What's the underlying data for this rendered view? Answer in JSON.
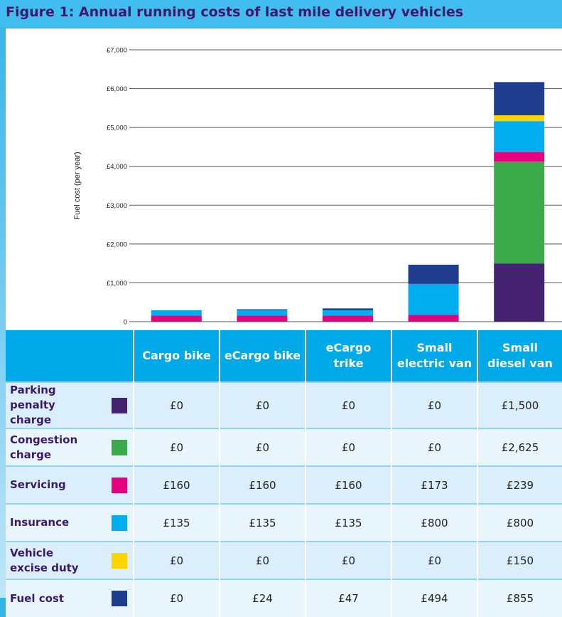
{
  "figure": {
    "title": "Figure 1: Annual running costs of last mile delivery vehicles"
  },
  "chart_data": {
    "type": "bar",
    "stacked": true,
    "categories": [
      "Cargo bike",
      "eCargo bike",
      "eCargo trike",
      "Small electric van",
      "Small diesel van"
    ],
    "category_header_lines": [
      [
        "Cargo bike"
      ],
      [
        "eCargo bike"
      ],
      [
        "eCargo",
        "trike"
      ],
      [
        "Small",
        "electric van"
      ],
      [
        "Small",
        "diesel van"
      ]
    ],
    "ylabel": "Fuel cost (per year)",
    "ylim": [
      0,
      7000
    ],
    "yticks": [
      0,
      1000,
      2000,
      3000,
      4000,
      5000,
      6000,
      7000
    ],
    "ytick_labels": [
      "0",
      "£1,000",
      "£2,000",
      "£3,000",
      "£4,000",
      "£5,000",
      "£6,000",
      "£7,000"
    ],
    "grid": true,
    "series": [
      {
        "name": "Parking penalty charge",
        "label_lines": [
          "Parking penalty",
          "charge"
        ],
        "color": "#44226f",
        "values": [
          0,
          0,
          0,
          0,
          1500
        ],
        "value_labels": [
          "£0",
          "£0",
          "£0",
          "£0",
          "£1,500"
        ]
      },
      {
        "name": "Congestion charge",
        "label_lines": [
          "Congestion",
          "charge"
        ],
        "color": "#3aaa4a",
        "values": [
          0,
          0,
          0,
          0,
          2625
        ],
        "value_labels": [
          "£0",
          "£0",
          "£0",
          "£0",
          "£2,625"
        ]
      },
      {
        "name": "Servicing",
        "label_lines": [
          "Servicing"
        ],
        "color": "#e5007e",
        "values": [
          160,
          160,
          160,
          173,
          239
        ],
        "value_labels": [
          "£160",
          "£160",
          "£160",
          "£173",
          "£239"
        ]
      },
      {
        "name": "Insurance",
        "label_lines": [
          "Insurance"
        ],
        "color": "#00aeef",
        "values": [
          135,
          135,
          135,
          800,
          800
        ],
        "value_labels": [
          "£135",
          "£135",
          "£135",
          "£800",
          "£800"
        ]
      },
      {
        "name": "Vehicle excise duty",
        "label_lines": [
          "Vehicle",
          "excise duty"
        ],
        "color": "#ffd400",
        "values": [
          0,
          0,
          0,
          0,
          150
        ],
        "value_labels": [
          "£0",
          "£0",
          "£0",
          "£0",
          "£150"
        ]
      },
      {
        "name": "Fuel cost",
        "label_lines": [
          "Fuel cost"
        ],
        "color": "#1f3d8e",
        "values": [
          0,
          24,
          47,
          494,
          855
        ],
        "value_labels": [
          "£0",
          "£24",
          "£47",
          "£494",
          "£855"
        ]
      }
    ]
  }
}
